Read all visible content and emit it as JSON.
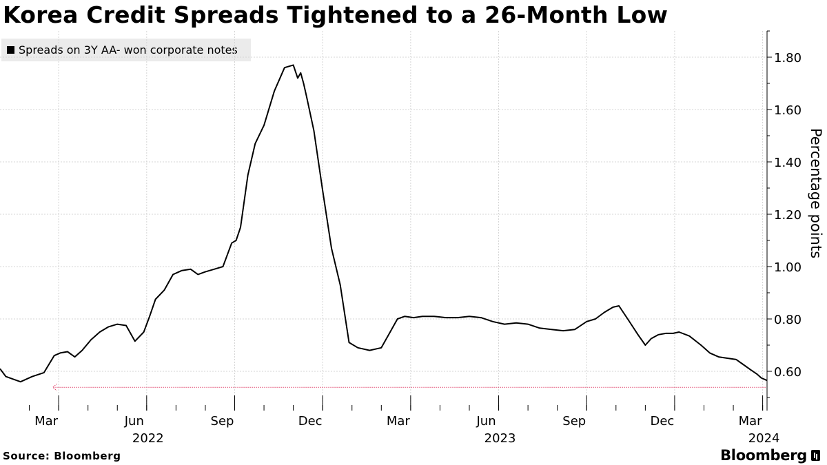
{
  "title": "Korea Credit Spreads Tightened to a 26-Month Low",
  "source": "Source: Bloomberg",
  "brand": "Bloomberg",
  "chart_data": {
    "type": "line",
    "title": "Korea Credit Spreads Tightened to a 26-Month Low",
    "ylabel": "Percentage points",
    "xlabel": "",
    "ylim": [
      0.45,
      1.9
    ],
    "y_ticks": [
      0.6,
      0.8,
      1.0,
      1.2,
      1.4,
      1.6,
      1.8
    ],
    "y_tick_labels": [
      "0.60",
      "0.80",
      "1.00",
      "1.20",
      "1.40",
      "1.60",
      "1.80"
    ],
    "x_range_months": [
      0,
      26.15
    ],
    "x_ticks": [
      {
        "month": 2.0,
        "label": "Mar"
      },
      {
        "month": 5.0,
        "label": "Jun"
      },
      {
        "month": 8.0,
        "label": "Sep"
      },
      {
        "month": 11.0,
        "label": "Dec"
      },
      {
        "month": 14.0,
        "label": "Mar"
      },
      {
        "month": 17.0,
        "label": "Jun"
      },
      {
        "month": 20.0,
        "label": "Sep"
      },
      {
        "month": 23.0,
        "label": "Dec"
      },
      {
        "month": 26.0,
        "label": "Mar"
      }
    ],
    "year_labels": [
      {
        "month": 5.0,
        "label": "2022"
      },
      {
        "month": 17.0,
        "label": "2023"
      },
      {
        "month": 26.0,
        "label": "2024"
      }
    ],
    "legend": "top-left",
    "grid": true,
    "series": [
      {
        "name": "Spreads on 3Y AA- won corporate notes",
        "color": "#000000",
        "x_months": [
          0.0,
          0.2,
          0.45,
          0.7,
          1.1,
          1.5,
          1.85,
          2.05,
          2.3,
          2.55,
          2.8,
          3.1,
          3.4,
          3.7,
          4.0,
          4.3,
          4.6,
          4.9,
          5.1,
          5.3,
          5.6,
          5.9,
          6.2,
          6.5,
          6.75,
          7.0,
          7.3,
          7.6,
          7.9,
          8.05,
          8.2,
          8.45,
          8.7,
          9.0,
          9.35,
          9.7,
          10.0,
          10.15,
          10.25,
          10.35,
          10.45,
          10.7,
          11.0,
          11.3,
          11.6,
          11.9,
          12.2,
          12.6,
          13.0,
          13.3,
          13.55,
          13.8,
          14.1,
          14.4,
          14.8,
          15.2,
          15.6,
          16.0,
          16.4,
          16.8,
          17.2,
          17.6,
          18.0,
          18.4,
          18.8,
          19.2,
          19.6,
          20.0,
          20.3,
          20.6,
          20.9,
          21.1,
          21.4,
          21.75,
          22.0,
          22.2,
          22.45,
          22.7,
          22.95,
          23.15,
          23.5,
          23.9,
          24.2,
          24.5,
          24.8,
          25.1,
          25.35,
          25.6,
          25.8,
          25.95,
          26.15
        ],
        "values": [
          0.61,
          0.58,
          0.57,
          0.56,
          0.58,
          0.595,
          0.66,
          0.67,
          0.675,
          0.655,
          0.68,
          0.72,
          0.75,
          0.77,
          0.78,
          0.775,
          0.715,
          0.75,
          0.81,
          0.875,
          0.91,
          0.97,
          0.985,
          0.99,
          0.97,
          0.98,
          0.99,
          1.0,
          1.09,
          1.1,
          1.15,
          1.35,
          1.47,
          1.54,
          1.67,
          1.76,
          1.77,
          1.72,
          1.74,
          1.7,
          1.65,
          1.52,
          1.29,
          1.07,
          0.93,
          0.71,
          0.69,
          0.68,
          0.69,
          0.75,
          0.8,
          0.81,
          0.805,
          0.81,
          0.81,
          0.805,
          0.805,
          0.81,
          0.805,
          0.79,
          0.78,
          0.785,
          0.78,
          0.765,
          0.76,
          0.755,
          0.76,
          0.79,
          0.8,
          0.825,
          0.845,
          0.85,
          0.8,
          0.74,
          0.7,
          0.725,
          0.74,
          0.745,
          0.745,
          0.75,
          0.735,
          0.7,
          0.67,
          0.655,
          0.65,
          0.645,
          0.625,
          0.605,
          0.59,
          0.575,
          0.565
        ]
      }
    ],
    "annotations": [
      {
        "type": "dotted-arrow",
        "color": "#e0436b",
        "from_month": 26.1,
        "to_month": 1.8,
        "y": 0.565
      }
    ]
  }
}
